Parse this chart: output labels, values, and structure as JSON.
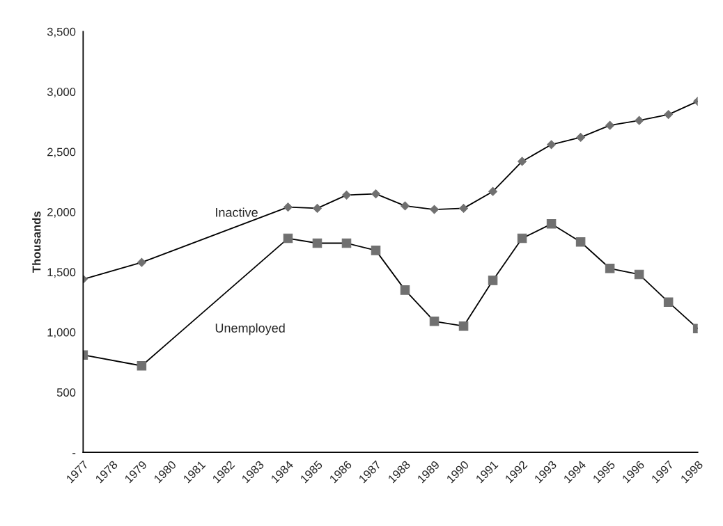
{
  "chart_data": {
    "type": "line",
    "ylabel": "Thousands",
    "x": [
      1977,
      1979,
      1984,
      1985,
      1986,
      1987,
      1988,
      1989,
      1990,
      1991,
      1992,
      1993,
      1994,
      1995,
      1996,
      1997,
      1998
    ],
    "series": [
      {
        "name": "Inactive",
        "color": "#707070",
        "marker": "diamond",
        "values": [
          1440,
          1580,
          2040,
          2030,
          2140,
          2150,
          2050,
          2020,
          2030,
          2170,
          2420,
          2560,
          2620,
          2720,
          2760,
          2810,
          2920
        ]
      },
      {
        "name": "Unemployed",
        "color": "#707070",
        "marker": "square",
        "values": [
          810,
          720,
          1780,
          1740,
          1740,
          1680,
          1350,
          1090,
          1050,
          1430,
          1780,
          1900,
          1750,
          1530,
          1480,
          1250,
          1030
        ]
      }
    ],
    "xlim": [
      1977,
      1998
    ],
    "xticks": [
      1977,
      1978,
      1979,
      1980,
      1981,
      1982,
      1983,
      1984,
      1985,
      1986,
      1987,
      1988,
      1989,
      1990,
      1991,
      1992,
      1993,
      1994,
      1995,
      1996,
      1997,
      1998
    ],
    "ylim": [
      0,
      3500
    ],
    "yticks": [
      {
        "value": 0,
        "label": "-"
      },
      {
        "value": 500,
        "label": "500"
      },
      {
        "value": 1000,
        "label": "1,000"
      },
      {
        "value": 1500,
        "label": "1,500"
      },
      {
        "value": 2000,
        "label": "2,000"
      },
      {
        "value": 2500,
        "label": "2,500"
      },
      {
        "value": 3000,
        "label": "3,000"
      },
      {
        "value": 3500,
        "label": "3,500"
      }
    ],
    "grid": false,
    "legend": false,
    "line_style": "solid"
  }
}
